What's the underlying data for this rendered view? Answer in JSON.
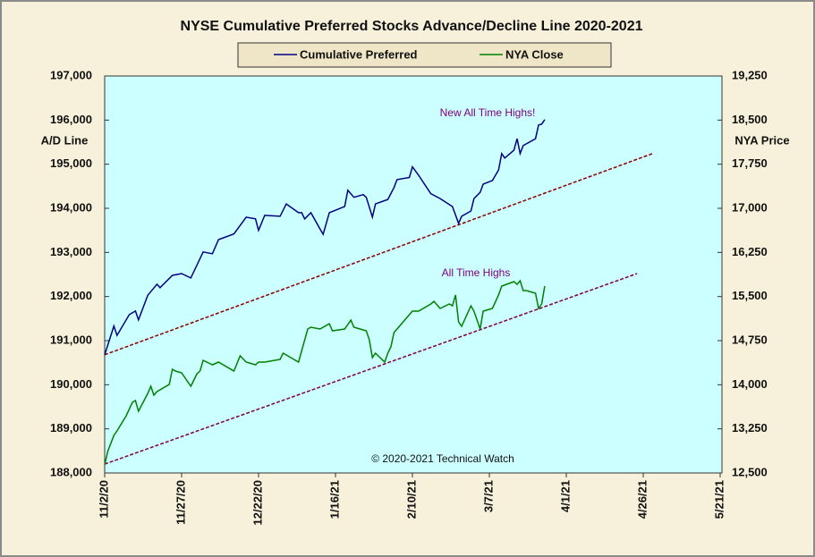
{
  "chart_data": {
    "type": "line",
    "title": "NYSE Cumulative  Preferred Stocks Advance/Decline  Line 2020-2021",
    "y_label": "A/D Line",
    "y2_label": "NYA Price",
    "annotations": [
      "New All Time Highs!",
      "All Time  Highs",
      "© 2020-2021  Technical  Watch"
    ],
    "xlim": [
      "11/2/20",
      "5/21/21"
    ],
    "xticks": [
      "11/2/20",
      "11/27/20",
      "12/22/20",
      "1/16/21",
      "2/10/21",
      "3/7/21",
      "4/1/21",
      "4/26/21",
      "5/21/21"
    ],
    "ylim": [
      188000,
      197000
    ],
    "yticks": [
      {
        "value": 188000,
        "label": "188,000"
      },
      {
        "value": 189000,
        "label": "189,000"
      },
      {
        "value": 190000,
        "label": "190,000"
      },
      {
        "value": 191000,
        "label": "191,000"
      },
      {
        "value": 192000,
        "label": "192,000"
      },
      {
        "value": 193000,
        "label": "193,000"
      },
      {
        "value": 194000,
        "label": "194,000"
      },
      {
        "value": 195000,
        "label": "195,000"
      },
      {
        "value": 196000,
        "label": "196,000"
      },
      {
        "value": 197000,
        "label": "197,000"
      }
    ],
    "y2lim": [
      12500,
      19250
    ],
    "y2ticks": [
      {
        "value": 12500,
        "label": "12,500"
      },
      {
        "value": 13250,
        "label": "13,250"
      },
      {
        "value": 14000,
        "label": "14,000"
      },
      {
        "value": 14750,
        "label": "14,750"
      },
      {
        "value": 15500,
        "label": "15,500"
      },
      {
        "value": 16250,
        "label": "16,250"
      },
      {
        "value": 17000,
        "label": "17,000"
      },
      {
        "value": 17750,
        "label": "17,750"
      },
      {
        "value": 18500,
        "label": "18,500"
      },
      {
        "value": 19250,
        "label": "19,250"
      }
    ],
    "series": [
      {
        "name": "Cumulative Preferred",
        "color": "#000080",
        "axis": "y",
        "x": [
          "11/2/20",
          "11/5/20",
          "11/6/20",
          "11/10/20",
          "11/12/20",
          "11/13/20",
          "11/16/20",
          "11/19/20",
          "11/20/20",
          "11/24/20",
          "11/27/20",
          "11/30/20",
          "12/4/20",
          "12/7/20",
          "12/9/20",
          "12/14/20",
          "12/18/20",
          "12/21/20",
          "12/22/20",
          "12/24/20",
          "12/29/20",
          "12/31/20",
          "1/4/21",
          "1/5/21",
          "1/6/21",
          "1/8/21",
          "1/11/21",
          "1/12/21",
          "1/14/21",
          "1/19/21",
          "1/20/21",
          "1/22/21",
          "1/25/21",
          "1/26/21",
          "1/28/21",
          "1/29/21",
          "2/2/21",
          "2/4/21",
          "2/5/21",
          "2/9/21",
          "2/10/21",
          "2/12/21",
          "2/16/21",
          "2/19/21",
          "2/23/21",
          "2/25/21",
          "2/26/21",
          "3/1/21",
          "3/2/21",
          "3/4/21",
          "3/5/21",
          "3/8/21",
          "3/10/21",
          "3/11/21",
          "3/12/21",
          "3/15/21",
          "3/16/21",
          "3/17/21",
          "3/18/21",
          "3/22/21",
          "3/23/21",
          "3/24/21",
          "3/25/21"
        ],
        "values": [
          190680,
          191330,
          191120,
          191590,
          191670,
          191470,
          192030,
          192280,
          192200,
          192480,
          192520,
          192420,
          193010,
          192970,
          193290,
          193420,
          193800,
          193760,
          193500,
          193840,
          193820,
          194100,
          193900,
          193900,
          193760,
          193900,
          193530,
          193410,
          193900,
          194040,
          194410,
          194250,
          194310,
          194250,
          193800,
          194100,
          194200,
          194470,
          194650,
          194700,
          194940,
          194750,
          194330,
          194220,
          194040,
          193660,
          193820,
          193940,
          194220,
          194360,
          194550,
          194630,
          194870,
          195240,
          195140,
          195320,
          195580,
          195240,
          195420,
          195580,
          195890,
          195910,
          196010
        ]
      },
      {
        "name": "NYA Close",
        "color": "#008000",
        "axis": "y2",
        "x": [
          "11/2/20",
          "11/3/20",
          "11/5/20",
          "11/6/20",
          "11/9/20",
          "11/11/20",
          "11/12/20",
          "11/13/20",
          "11/16/20",
          "11/17/20",
          "11/18/20",
          "11/19/20",
          "11/23/20",
          "11/24/20",
          "11/25/20",
          "11/27/20",
          "11/30/20",
          "12/2/20",
          "12/3/20",
          "12/4/20",
          "12/7/20",
          "12/9/20",
          "12/14/20",
          "12/16/20",
          "12/18/20",
          "12/21/20",
          "12/22/20",
          "12/24/20",
          "12/29/20",
          "12/30/20",
          "1/4/21",
          "1/7/21",
          "1/8/21",
          "1/11/21",
          "1/14/21",
          "1/15/21",
          "1/19/21",
          "1/21/21",
          "1/22/21",
          "1/26/21",
          "1/27/21",
          "1/28/21",
          "1/29/21",
          "2/1/21",
          "2/2/21",
          "2/3/21",
          "2/4/21",
          "2/8/21",
          "2/10/21",
          "2/12/21",
          "2/16/21",
          "2/17/21",
          "2/19/21",
          "2/22/21",
          "2/23/21",
          "2/24/21",
          "2/25/21",
          "2/26/21",
          "3/1/21",
          "3/2/21",
          "3/4/21",
          "3/5/21",
          "3/8/21",
          "3/10/21",
          "3/11/21",
          "3/15/21",
          "3/16/21",
          "3/17/21",
          "3/18/21",
          "3/19/21",
          "3/22/21",
          "3/23/21",
          "3/24/21",
          "3/25/21"
        ],
        "values": [
          12637,
          12865,
          13138,
          13214,
          13473,
          13701,
          13731,
          13549,
          13853,
          13974,
          13822,
          13883,
          14005,
          14263,
          14233,
          14202,
          13974,
          14187,
          14233,
          14415,
          14339,
          14385,
          14233,
          14491,
          14385,
          14339,
          14385,
          14385,
          14430,
          14537,
          14385,
          14947,
          14978,
          14947,
          15038,
          14917,
          14947,
          15099,
          14978,
          14917,
          14765,
          14461,
          14537,
          14385,
          14537,
          14643,
          14887,
          15130,
          15251,
          15251,
          15373,
          15418,
          15297,
          15373,
          15342,
          15525,
          15069,
          14993,
          15342,
          15251,
          14947,
          15251,
          15297,
          15525,
          15677,
          15753,
          15707,
          15768,
          15601,
          15601,
          15555,
          15297,
          15373,
          15677
        ]
      }
    ],
    "trendlines": [
      {
        "color": "#8b0000",
        "axis": "y",
        "x": [
          "11/2/20",
          "4/29/21"
        ],
        "values": [
          190680,
          195240
        ]
      },
      {
        "color": "#800040",
        "axis": "y2",
        "x": [
          "11/2/20",
          "4/24/21"
        ],
        "values": [
          12650,
          15890
        ]
      }
    ]
  }
}
